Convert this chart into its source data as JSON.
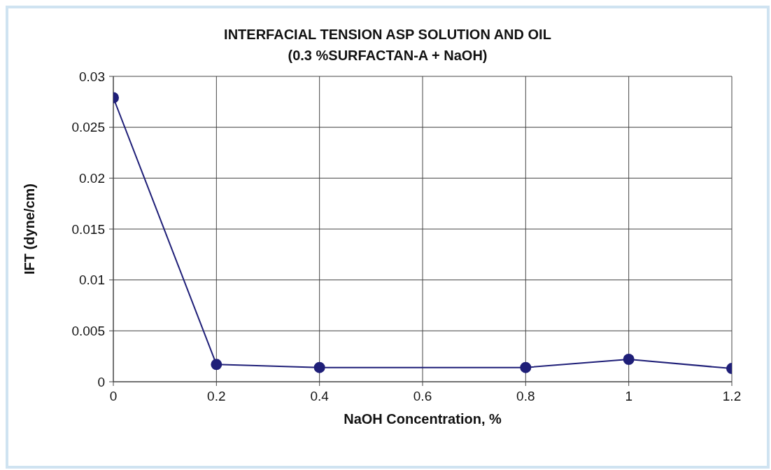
{
  "chart_data": {
    "type": "line",
    "title": "INTERFACIAL TENSION ASP SOLUTION AND OIL",
    "subtitle": "(0.3 %SURFACTAN-A + NaOH)",
    "xlabel": "NaOH Concentration, %",
    "ylabel": "IFT (dyne/cm)",
    "x": [
      0,
      0.2,
      0.4,
      0.8,
      1.0,
      1.2
    ],
    "series": [
      {
        "color": "#1f1f78",
        "values": [
          0.0279,
          0.0017,
          0.0014,
          0.0014,
          0.0022,
          0.0013
        ]
      }
    ],
    "xlim": [
      0,
      1.2
    ],
    "xticks": [
      0,
      0.2,
      0.4,
      0.6,
      0.8,
      1,
      1.2
    ],
    "ylim": [
      0,
      0.03
    ],
    "yticks": [
      0,
      0.005,
      0.01,
      0.015,
      0.02,
      0.025,
      0.03
    ],
    "grid": true,
    "marker": "circle",
    "line_style": "solid"
  }
}
